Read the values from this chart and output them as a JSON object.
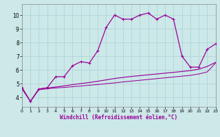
{
  "xlabel": "Windchill (Refroidissement éolien,°C)",
  "bg_color": "#cce8e8",
  "line_color": "#990099",
  "xlim": [
    0,
    23
  ],
  "ylim": [
    3.3,
    10.8
  ],
  "xticks": [
    0,
    1,
    2,
    3,
    4,
    5,
    6,
    7,
    8,
    9,
    10,
    11,
    12,
    13,
    14,
    15,
    16,
    17,
    18,
    19,
    20,
    21,
    22,
    23
  ],
  "yticks": [
    4,
    5,
    6,
    7,
    8,
    9,
    10
  ],
  "grid_color": "#aad2d2",
  "curve1_x": [
    0,
    1,
    2,
    3,
    4,
    5,
    6,
    7,
    8,
    9,
    10,
    11,
    12,
    13,
    14,
    15,
    16,
    17,
    18,
    19,
    20,
    21,
    22,
    23
  ],
  "curve1_y": [
    4.7,
    3.7,
    4.6,
    4.7,
    5.5,
    5.5,
    6.3,
    6.6,
    6.5,
    7.4,
    9.1,
    10.0,
    9.7,
    9.7,
    10.0,
    10.15,
    9.7,
    10.0,
    9.7,
    7.0,
    6.2,
    6.2,
    7.5,
    7.9
  ],
  "curve2_x": [
    0,
    1,
    2,
    3,
    4,
    5,
    6,
    7,
    8,
    9,
    10,
    11,
    12,
    13,
    14,
    15,
    16,
    17,
    18,
    19,
    20,
    21,
    22,
    23
  ],
  "curve2_y": [
    4.7,
    3.7,
    4.6,
    4.68,
    4.75,
    4.83,
    4.92,
    5.0,
    5.08,
    5.17,
    5.27,
    5.37,
    5.45,
    5.52,
    5.58,
    5.64,
    5.7,
    5.76,
    5.82,
    5.88,
    5.95,
    6.05,
    6.25,
    6.55
  ],
  "curve3_x": [
    0,
    1,
    2,
    3,
    4,
    5,
    6,
    7,
    8,
    9,
    10,
    11,
    12,
    13,
    14,
    15,
    16,
    17,
    18,
    19,
    20,
    21,
    22,
    23
  ],
  "curve3_y": [
    4.6,
    3.7,
    4.55,
    4.62,
    4.68,
    4.72,
    4.77,
    4.82,
    4.88,
    4.93,
    4.99,
    5.05,
    5.12,
    5.18,
    5.24,
    5.3,
    5.36,
    5.42,
    5.48,
    5.54,
    5.6,
    5.7,
    5.85,
    6.5
  ]
}
